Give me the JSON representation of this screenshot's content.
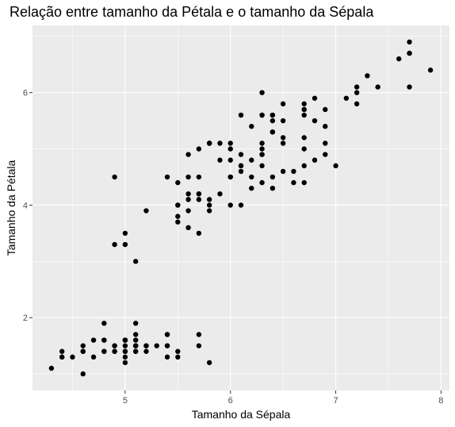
{
  "chart_data": {
    "type": "scatter",
    "title": "Relação entre tamanho da Pétala e o tamanho da Sépala",
    "xlabel": "Tamanho da Sépala",
    "ylabel": "Tamanho da Pétala",
    "xlim": [
      4.12,
      8.08
    ],
    "ylim": [
      0.705,
      7.195
    ],
    "x_ticks": [
      5,
      6,
      7,
      8
    ],
    "y_ticks": [
      2,
      4,
      6
    ],
    "x_minor": [
      4.5,
      5.5,
      6.5,
      7.5
    ],
    "y_minor": [
      1,
      3,
      5,
      7
    ],
    "grid": true,
    "colors": {
      "panel": "#ebebeb",
      "grid": "#ffffff",
      "point": "#000000",
      "tick_label": "#4d4d4d"
    },
    "points": [
      [
        5.1,
        1.4
      ],
      [
        4.9,
        1.4
      ],
      [
        4.7,
        1.3
      ],
      [
        4.6,
        1.5
      ],
      [
        5.0,
        1.4
      ],
      [
        5.4,
        1.7
      ],
      [
        4.6,
        1.4
      ],
      [
        5.0,
        1.5
      ],
      [
        4.4,
        1.4
      ],
      [
        4.9,
        1.5
      ],
      [
        5.4,
        1.5
      ],
      [
        4.8,
        1.6
      ],
      [
        4.8,
        1.4
      ],
      [
        4.3,
        1.1
      ],
      [
        5.8,
        1.2
      ],
      [
        5.7,
        1.5
      ],
      [
        5.4,
        1.3
      ],
      [
        5.1,
        1.4
      ],
      [
        5.7,
        1.7
      ],
      [
        5.1,
        1.5
      ],
      [
        5.4,
        1.7
      ],
      [
        5.1,
        1.5
      ],
      [
        4.6,
        1.0
      ],
      [
        5.1,
        1.7
      ],
      [
        4.8,
        1.9
      ],
      [
        5.0,
        1.6
      ],
      [
        5.0,
        1.6
      ],
      [
        5.2,
        1.5
      ],
      [
        5.2,
        1.4
      ],
      [
        4.7,
        1.6
      ],
      [
        4.8,
        1.6
      ],
      [
        5.4,
        1.5
      ],
      [
        5.2,
        1.5
      ],
      [
        5.5,
        1.4
      ],
      [
        4.9,
        1.5
      ],
      [
        5.0,
        1.2
      ],
      [
        5.5,
        1.3
      ],
      [
        4.9,
        1.4
      ],
      [
        4.4,
        1.3
      ],
      [
        5.1,
        1.5
      ],
      [
        5.0,
        1.3
      ],
      [
        4.5,
        1.3
      ],
      [
        4.4,
        1.3
      ],
      [
        5.0,
        1.6
      ],
      [
        5.1,
        1.9
      ],
      [
        4.8,
        1.4
      ],
      [
        5.1,
        1.6
      ],
      [
        4.6,
        1.4
      ],
      [
        5.3,
        1.5
      ],
      [
        5.0,
        1.4
      ],
      [
        7.0,
        4.7
      ],
      [
        6.4,
        4.5
      ],
      [
        6.9,
        4.9
      ],
      [
        5.5,
        4.0
      ],
      [
        6.5,
        4.6
      ],
      [
        5.7,
        4.5
      ],
      [
        6.3,
        4.7
      ],
      [
        4.9,
        3.3
      ],
      [
        6.6,
        4.6
      ],
      [
        5.2,
        3.9
      ],
      [
        5.0,
        3.5
      ],
      [
        5.9,
        4.2
      ],
      [
        6.0,
        4.0
      ],
      [
        6.1,
        4.7
      ],
      [
        5.6,
        3.6
      ],
      [
        6.7,
        4.4
      ],
      [
        5.6,
        4.5
      ],
      [
        5.8,
        4.1
      ],
      [
        6.2,
        4.5
      ],
      [
        5.6,
        3.9
      ],
      [
        5.9,
        4.8
      ],
      [
        6.1,
        4.0
      ],
      [
        6.3,
        4.9
      ],
      [
        6.1,
        4.7
      ],
      [
        6.4,
        4.3
      ],
      [
        6.6,
        4.4
      ],
      [
        6.8,
        4.8
      ],
      [
        6.7,
        5.0
      ],
      [
        6.0,
        4.5
      ],
      [
        5.7,
        3.5
      ],
      [
        5.5,
        3.8
      ],
      [
        5.5,
        3.7
      ],
      [
        5.8,
        3.9
      ],
      [
        6.0,
        5.1
      ],
      [
        5.4,
        4.5
      ],
      [
        6.0,
        4.5
      ],
      [
        6.7,
        4.7
      ],
      [
        6.3,
        4.4
      ],
      [
        5.6,
        4.1
      ],
      [
        5.5,
        4.0
      ],
      [
        5.5,
        4.4
      ],
      [
        6.1,
        4.6
      ],
      [
        5.8,
        4.0
      ],
      [
        5.0,
        3.3
      ],
      [
        5.6,
        4.2
      ],
      [
        5.7,
        4.2
      ],
      [
        5.7,
        4.2
      ],
      [
        6.2,
        4.3
      ],
      [
        5.1,
        3.0
      ],
      [
        5.7,
        4.1
      ],
      [
        6.3,
        6.0
      ],
      [
        5.8,
        5.1
      ],
      [
        7.1,
        5.9
      ],
      [
        6.3,
        5.6
      ],
      [
        6.5,
        5.8
      ],
      [
        7.6,
        6.6
      ],
      [
        4.9,
        4.5
      ],
      [
        7.3,
        6.3
      ],
      [
        6.7,
        5.8
      ],
      [
        7.2,
        6.1
      ],
      [
        6.5,
        5.1
      ],
      [
        6.4,
        5.3
      ],
      [
        6.8,
        5.5
      ],
      [
        5.7,
        5.0
      ],
      [
        5.8,
        5.1
      ],
      [
        6.4,
        5.3
      ],
      [
        6.5,
        5.5
      ],
      [
        7.7,
        6.7
      ],
      [
        7.7,
        6.9
      ],
      [
        6.0,
        5.0
      ],
      [
        6.9,
        5.7
      ],
      [
        5.6,
        4.9
      ],
      [
        7.7,
        6.7
      ],
      [
        6.3,
        4.9
      ],
      [
        6.7,
        5.7
      ],
      [
        7.2,
        6.0
      ],
      [
        6.2,
        4.8
      ],
      [
        6.1,
        4.9
      ],
      [
        6.4,
        5.6
      ],
      [
        7.2,
        5.8
      ],
      [
        7.4,
        6.1
      ],
      [
        7.9,
        6.4
      ],
      [
        6.4,
        5.6
      ],
      [
        6.3,
        5.1
      ],
      [
        6.1,
        5.6
      ],
      [
        7.7,
        6.1
      ],
      [
        6.3,
        5.6
      ],
      [
        6.4,
        5.5
      ],
      [
        6.0,
        4.8
      ],
      [
        6.9,
        5.4
      ],
      [
        6.7,
        5.6
      ],
      [
        6.9,
        5.1
      ],
      [
        5.8,
        5.1
      ],
      [
        6.8,
        5.9
      ],
      [
        6.7,
        5.7
      ],
      [
        6.7,
        5.2
      ],
      [
        6.3,
        5.0
      ],
      [
        6.5,
        5.2
      ],
      [
        6.2,
        5.4
      ],
      [
        5.9,
        5.1
      ]
    ]
  }
}
